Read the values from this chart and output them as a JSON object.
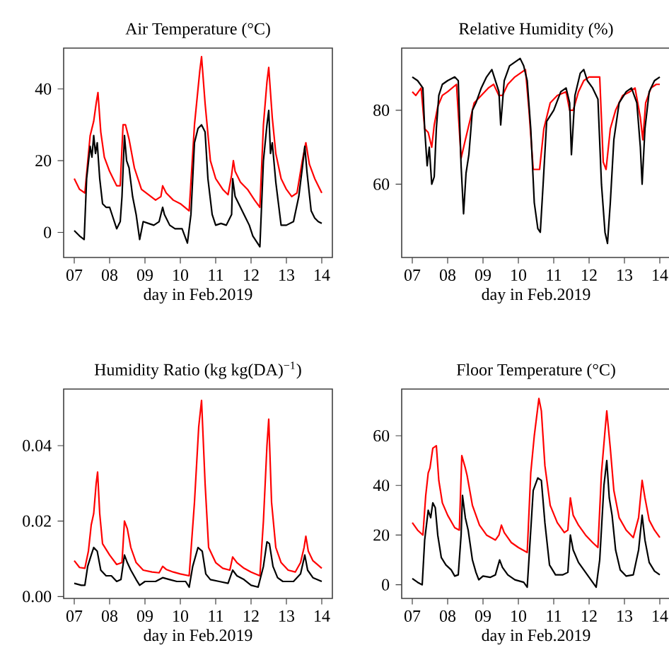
{
  "chart_data": [
    {
      "type": "line",
      "title": "Air Temperature (°C)",
      "xlabel": "day in Feb.2019",
      "xlim": [
        6.7,
        14.3
      ],
      "ylim": [
        -7,
        51.4
      ],
      "xticks": [
        {
          "value": 7,
          "label": "07"
        },
        {
          "value": 8,
          "label": "08"
        },
        {
          "value": 9,
          "label": "09"
        },
        {
          "value": 10,
          "label": "10"
        },
        {
          "value": 11,
          "label": "11"
        },
        {
          "value": 12,
          "label": "12"
        },
        {
          "value": 13,
          "label": "13"
        },
        {
          "value": 14,
          "label": "14"
        }
      ],
      "yticks": [
        0,
        20,
        40
      ],
      "series": [
        {
          "color": "#ff0000",
          "x": [
            7.0,
            7.15,
            7.3,
            7.45,
            7.55,
            7.62,
            7.67,
            7.75,
            7.85,
            8.0,
            8.2,
            8.3,
            8.38,
            8.45,
            8.55,
            8.7,
            8.9,
            9.1,
            9.3,
            9.45,
            9.5,
            9.6,
            9.8,
            10.0,
            10.25,
            10.4,
            10.55,
            10.6,
            10.7,
            10.85,
            11.0,
            11.2,
            11.35,
            11.45,
            11.5,
            11.55,
            11.7,
            11.9,
            12.1,
            12.25,
            12.35,
            12.45,
            12.5,
            12.6,
            12.7,
            12.85,
            13.0,
            13.15,
            13.3,
            13.45,
            13.55,
            13.65,
            13.8,
            14.0
          ],
          "values": [
            15,
            12,
            11,
            27,
            31,
            36,
            39,
            28,
            21,
            17,
            13,
            13,
            30,
            30,
            26,
            18,
            12,
            10.5,
            9,
            10,
            13,
            11,
            9,
            8,
            6,
            30,
            45,
            49,
            36,
            20,
            15,
            12,
            10.5,
            16,
            20,
            17,
            14,
            12,
            9,
            7,
            30,
            42,
            46,
            32,
            22,
            15,
            12,
            10,
            11,
            20,
            25,
            19,
            15,
            11
          ]
        },
        {
          "color": "#000000",
          "x": [
            7.0,
            7.15,
            7.28,
            7.35,
            7.45,
            7.5,
            7.55,
            7.6,
            7.65,
            7.72,
            7.8,
            7.9,
            8.0,
            8.1,
            8.2,
            8.3,
            8.35,
            8.42,
            8.48,
            8.55,
            8.65,
            8.75,
            8.85,
            8.95,
            9.1,
            9.25,
            9.4,
            9.5,
            9.55,
            9.7,
            9.85,
            10.05,
            10.2,
            10.3,
            10.4,
            10.5,
            10.6,
            10.7,
            10.78,
            10.9,
            11.0,
            11.15,
            11.3,
            11.45,
            11.48,
            11.55,
            11.7,
            11.85,
            11.95,
            12.05,
            12.25,
            12.35,
            12.45,
            12.5,
            12.55,
            12.6,
            12.7,
            12.85,
            13.0,
            13.2,
            13.35,
            13.45,
            13.52,
            13.58,
            13.7,
            13.8,
            13.9,
            14.0
          ],
          "values": [
            0.5,
            -1,
            -2,
            15,
            24,
            21,
            27,
            22,
            25,
            15,
            8,
            7,
            7,
            4,
            1,
            3,
            10,
            27,
            20,
            18,
            10,
            5,
            -2,
            3,
            2.5,
            2,
            3,
            7,
            5,
            2,
            1,
            1,
            -3,
            5,
            25,
            29,
            30,
            28,
            15,
            5,
            2,
            2.5,
            2,
            5,
            15,
            10,
            7,
            4,
            2,
            -1,
            -4,
            20,
            30,
            34,
            22,
            25,
            14,
            2,
            2,
            3,
            10,
            18,
            24,
            17,
            6,
            4,
            3,
            2.5
          ]
        }
      ]
    },
    {
      "type": "line",
      "title": "Relative Humidity (%)",
      "xlabel": "day in Feb.2019",
      "xlim": [
        6.7,
        14.3
      ],
      "ylim": [
        40.2,
        96.8
      ],
      "xticks": [
        {
          "value": 7,
          "label": "07"
        },
        {
          "value": 8,
          "label": "08"
        },
        {
          "value": 9,
          "label": "09"
        },
        {
          "value": 10,
          "label": "10"
        },
        {
          "value": 11,
          "label": "11"
        },
        {
          "value": 12,
          "label": "12"
        },
        {
          "value": 13,
          "label": "13"
        },
        {
          "value": 14,
          "label": "14"
        }
      ],
      "yticks": [
        60,
        80
      ],
      "series": [
        {
          "color": "#ff0000",
          "x": [
            7.0,
            7.1,
            7.25,
            7.35,
            7.45,
            7.55,
            7.62,
            7.72,
            7.85,
            8.0,
            8.25,
            8.38,
            8.5,
            8.6,
            8.75,
            8.95,
            9.15,
            9.3,
            9.45,
            9.55,
            9.7,
            9.9,
            10.05,
            10.2,
            10.3,
            10.42,
            10.6,
            10.72,
            10.9,
            11.1,
            11.35,
            11.45,
            11.55,
            11.7,
            11.85,
            12.0,
            12.3,
            12.4,
            12.48,
            12.6,
            12.75,
            12.95,
            13.15,
            13.3,
            13.45,
            13.52,
            13.6,
            13.75,
            13.9,
            14.0
          ],
          "values": [
            85,
            84,
            86,
            75,
            74,
            70,
            76,
            81,
            84,
            85,
            87,
            67,
            72,
            76,
            82,
            84,
            86,
            87,
            84,
            84,
            87,
            89,
            90,
            91,
            80,
            64,
            64,
            75,
            82,
            84,
            85,
            80,
            80,
            85,
            88,
            89,
            89,
            66,
            64,
            75,
            80,
            84,
            85,
            86,
            78,
            72,
            82,
            86,
            87,
            87
          ]
        },
        {
          "color": "#000000",
          "x": [
            7.0,
            7.15,
            7.3,
            7.35,
            7.42,
            7.48,
            7.55,
            7.62,
            7.68,
            7.75,
            7.85,
            8.0,
            8.2,
            8.3,
            8.38,
            8.45,
            8.52,
            8.6,
            8.7,
            8.8,
            8.95,
            9.1,
            9.25,
            9.35,
            9.45,
            9.5,
            9.6,
            9.75,
            9.9,
            10.05,
            10.15,
            10.25,
            10.35,
            10.45,
            10.55,
            10.62,
            10.7,
            10.8,
            11.0,
            11.2,
            11.35,
            11.45,
            11.5,
            11.6,
            11.75,
            11.85,
            11.95,
            12.1,
            12.25,
            12.35,
            12.45,
            12.52,
            12.6,
            12.7,
            12.85,
            13.05,
            13.2,
            13.35,
            13.45,
            13.5,
            13.58,
            13.7,
            13.85,
            14.0
          ],
          "values": [
            89,
            88,
            86,
            75,
            65,
            70,
            60,
            62,
            75,
            84,
            87,
            88,
            89,
            88,
            65,
            52,
            63,
            68,
            80,
            82,
            86,
            89,
            91,
            88,
            85,
            76,
            88,
            92,
            93,
            94,
            92,
            88,
            75,
            55,
            48,
            47,
            60,
            77,
            80,
            85,
            86,
            82,
            68,
            84,
            90,
            91,
            88,
            86,
            83,
            60,
            47,
            44,
            55,
            72,
            82,
            85,
            86,
            82,
            70,
            60,
            75,
            85,
            88,
            89
          ]
        }
      ]
    },
    {
      "type": "line",
      "title": "Humidity Ratio (kg kg(DA)$^{−1}$)",
      "xlabel": "day in Feb.2019",
      "xlim": [
        6.7,
        14.3
      ],
      "ylim": [
        -0.0005,
        0.055
      ],
      "xticks": [
        {
          "value": 7,
          "label": "07"
        },
        {
          "value": 8,
          "label": "08"
        },
        {
          "value": 9,
          "label": "09"
        },
        {
          "value": 10,
          "label": "10"
        },
        {
          "value": 11,
          "label": "11"
        },
        {
          "value": 12,
          "label": "12"
        },
        {
          "value": 13,
          "label": "13"
        },
        {
          "value": 14,
          "label": "14"
        }
      ],
      "yticks": [
        {
          "value": 0,
          "label": "0.00"
        },
        {
          "value": 0.02,
          "label": "0.02"
        },
        {
          "value": 0.04,
          "label": "0.04"
        }
      ],
      "series": [
        {
          "color": "#ff0000",
          "x": [
            7.0,
            7.15,
            7.3,
            7.4,
            7.48,
            7.55,
            7.62,
            7.66,
            7.72,
            7.8,
            8.0,
            8.2,
            8.35,
            8.42,
            8.5,
            8.6,
            8.75,
            8.95,
            9.2,
            9.4,
            9.5,
            9.6,
            9.8,
            10.0,
            10.25,
            10.4,
            10.52,
            10.6,
            10.7,
            10.8,
            11.0,
            11.2,
            11.4,
            11.48,
            11.6,
            11.8,
            12.0,
            12.25,
            12.35,
            12.45,
            12.5,
            12.58,
            12.7,
            12.85,
            13.05,
            13.25,
            13.4,
            13.5,
            13.55,
            13.62,
            13.75,
            14.0
          ],
          "values": [
            0.0095,
            0.0077,
            0.0075,
            0.012,
            0.019,
            0.022,
            0.03,
            0.033,
            0.022,
            0.014,
            0.011,
            0.0085,
            0.009,
            0.02,
            0.018,
            0.013,
            0.009,
            0.007,
            0.0065,
            0.0063,
            0.008,
            0.0072,
            0.0065,
            0.006,
            0.0055,
            0.025,
            0.045,
            0.052,
            0.03,
            0.013,
            0.009,
            0.0075,
            0.007,
            0.0105,
            0.009,
            0.0075,
            0.0065,
            0.0055,
            0.02,
            0.04,
            0.047,
            0.025,
            0.013,
            0.009,
            0.007,
            0.0065,
            0.009,
            0.013,
            0.016,
            0.012,
            0.0095,
            0.0075
          ]
        },
        {
          "color": "#000000",
          "x": [
            7.0,
            7.2,
            7.3,
            7.38,
            7.48,
            7.55,
            7.65,
            7.75,
            7.9,
            8.05,
            8.2,
            8.32,
            8.42,
            8.5,
            8.6,
            8.75,
            8.85,
            9.0,
            9.3,
            9.5,
            9.7,
            9.9,
            10.15,
            10.25,
            10.35,
            10.5,
            10.62,
            10.72,
            10.85,
            11.1,
            11.35,
            11.48,
            11.6,
            11.8,
            12.0,
            12.2,
            12.35,
            12.45,
            12.52,
            12.62,
            12.75,
            12.9,
            13.2,
            13.4,
            13.52,
            13.6,
            13.75,
            14.0
          ],
          "values": [
            0.0035,
            0.003,
            0.003,
            0.008,
            0.011,
            0.013,
            0.012,
            0.007,
            0.0055,
            0.0055,
            0.004,
            0.0045,
            0.011,
            0.009,
            0.007,
            0.0045,
            0.003,
            0.004,
            0.004,
            0.005,
            0.0045,
            0.004,
            0.004,
            0.0025,
            0.008,
            0.013,
            0.012,
            0.006,
            0.0045,
            0.004,
            0.0035,
            0.007,
            0.0055,
            0.0045,
            0.003,
            0.0025,
            0.008,
            0.0145,
            0.014,
            0.008,
            0.005,
            0.004,
            0.004,
            0.006,
            0.011,
            0.007,
            0.005,
            0.004
          ]
        }
      ]
    },
    {
      "type": "line",
      "title": "Floor Temperature (°C)",
      "xlabel": "day in Feb.2019",
      "xlim": [
        6.7,
        14.3
      ],
      "ylim": [
        -5.5,
        78.8
      ],
      "xticks": [
        {
          "value": 7,
          "label": "07"
        },
        {
          "value": 8,
          "label": "08"
        },
        {
          "value": 9,
          "label": "09"
        },
        {
          "value": 10,
          "label": "10"
        },
        {
          "value": 11,
          "label": "11"
        },
        {
          "value": 12,
          "label": "12"
        },
        {
          "value": 13,
          "label": "13"
        },
        {
          "value": 14,
          "label": "14"
        }
      ],
      "yticks": [
        0,
        20,
        40,
        60
      ],
      "series": [
        {
          "color": "#ff0000",
          "x": [
            7.0,
            7.15,
            7.3,
            7.38,
            7.45,
            7.5,
            7.58,
            7.68,
            7.75,
            7.85,
            8.0,
            8.2,
            8.33,
            8.4,
            8.5,
            8.55,
            8.7,
            8.9,
            9.1,
            9.35,
            9.45,
            9.52,
            9.6,
            9.8,
            10.0,
            10.25,
            10.35,
            10.45,
            10.58,
            10.65,
            10.75,
            10.9,
            11.1,
            11.3,
            11.4,
            11.47,
            11.55,
            11.7,
            11.9,
            12.1,
            12.25,
            12.35,
            12.45,
            12.5,
            12.6,
            12.7,
            12.85,
            13.05,
            13.25,
            13.4,
            13.5,
            13.58,
            13.7,
            13.85,
            14.0
          ],
          "values": [
            25,
            22,
            20,
            36,
            45,
            47,
            55,
            56,
            42,
            33,
            28,
            23,
            22,
            52,
            47,
            44,
            32,
            24,
            20,
            18,
            20,
            24,
            21,
            17,
            15,
            13,
            45,
            60,
            75,
            70,
            48,
            32,
            25,
            21,
            22,
            35,
            28,
            24,
            20,
            17,
            15,
            45,
            62,
            70,
            55,
            38,
            27,
            22,
            19,
            27,
            42,
            35,
            26,
            22,
            19
          ]
        },
        {
          "color": "#000000",
          "x": [
            7.0,
            7.15,
            7.28,
            7.35,
            7.45,
            7.52,
            7.58,
            7.65,
            7.72,
            7.82,
            7.95,
            8.1,
            8.2,
            8.3,
            8.38,
            8.42,
            8.5,
            8.58,
            8.7,
            8.8,
            8.88,
            9.0,
            9.2,
            9.35,
            9.47,
            9.55,
            9.7,
            9.9,
            10.15,
            10.25,
            10.32,
            10.42,
            10.55,
            10.65,
            10.75,
            10.88,
            11.05,
            11.25,
            11.4,
            11.47,
            11.55,
            11.7,
            11.85,
            12.0,
            12.2,
            12.3,
            12.42,
            12.5,
            12.57,
            12.65,
            12.75,
            12.88,
            13.05,
            13.25,
            13.4,
            13.5,
            13.58,
            13.7,
            13.85,
            14.0
          ],
          "values": [
            2.5,
            1,
            0,
            18,
            30,
            27,
            33,
            31,
            20,
            11,
            8,
            6,
            3.5,
            4,
            20,
            36,
            27,
            22,
            10,
            5,
            2,
            3.5,
            3,
            4,
            10,
            7,
            4,
            2,
            1,
            -1,
            15,
            38,
            43,
            42,
            25,
            8,
            4,
            4,
            5,
            20,
            14,
            9,
            6,
            3,
            -1,
            10,
            40,
            50,
            35,
            28,
            14,
            6,
            3.5,
            4,
            14,
            28,
            18,
            9,
            5.5,
            4
          ]
        }
      ]
    }
  ]
}
